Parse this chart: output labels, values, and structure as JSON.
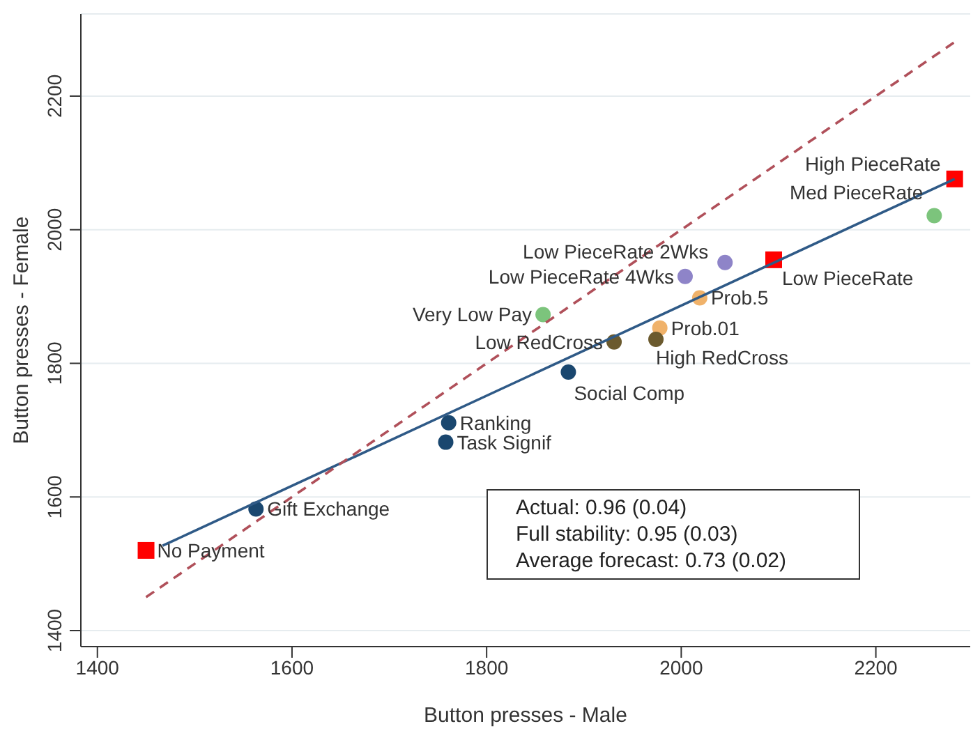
{
  "chart_data": {
    "type": "scatter",
    "xlabel": "Button presses - Male",
    "ylabel": "Button presses - Female",
    "xlim": [
      1383,
      2297
    ],
    "ylim": [
      1376,
      2323
    ],
    "xticks": [
      1400,
      1600,
      1800,
      2000,
      2200
    ],
    "yticks": [
      1400,
      1600,
      1800,
      2000,
      2200
    ],
    "grid": "y",
    "legend": false,
    "marker": "circle",
    "series": [
      {
        "color": "#1a476f",
        "x": [
          1563,
          1758,
          1761,
          1884
        ],
        "values": [
          1582,
          1682,
          1711,
          1787
        ]
      },
      {
        "color": "#ff0000",
        "marker": "square",
        "x": [
          1450,
          2095,
          2281
        ],
        "values": [
          1520,
          1955,
          2076
        ]
      },
      {
        "color": "#7cc47c",
        "x": [
          1858,
          2260
        ],
        "values": [
          1873,
          2021
        ]
      },
      {
        "color": "#8e84c8",
        "x": [
          2004,
          2045
        ],
        "values": [
          1930,
          1951
        ]
      },
      {
        "color": "#f0b26a",
        "x": [
          1978,
          2019
        ],
        "values": [
          1853,
          1898
        ]
      },
      {
        "color": "#6b5a2e",
        "x": [
          1931,
          1974
        ],
        "values": [
          1832,
          1836
        ]
      },
      {
        "type": "line",
        "color": "#2f5a87",
        "line_style": "solid",
        "marker": "none",
        "x": [
          1467,
          2281
        ],
        "values": [
          1527,
          2076
        ]
      },
      {
        "type": "line",
        "color": "#b0505a",
        "line_style": "dashed",
        "marker": "none",
        "x": [
          1450,
          2280
        ],
        "values": [
          1450,
          2280
        ]
      }
    ],
    "annotations": [
      {
        "text": "No Payment",
        "x": 1450,
        "y": 1520
      },
      {
        "text": "Gift Exchange",
        "x": 1563,
        "y": 1582
      },
      {
        "text": "Task Signif",
        "x": 1758,
        "y": 1682
      },
      {
        "text": "Ranking",
        "x": 1761,
        "y": 1711
      },
      {
        "text": "Social Comp",
        "x": 1884,
        "y": 1787
      },
      {
        "text": "Very Low Pay",
        "x": 1858,
        "y": 1873
      },
      {
        "text": "Low RedCross",
        "x": 1931,
        "y": 1832
      },
      {
        "text": "High RedCross",
        "x": 1974,
        "y": 1836
      },
      {
        "text": "Prob.01",
        "x": 1978,
        "y": 1853
      },
      {
        "text": "Prob.5",
        "x": 2019,
        "y": 1898
      },
      {
        "text": "Low PieceRate 4Wks",
        "x": 2004,
        "y": 1930
      },
      {
        "text": "Low PieceRate 2Wks",
        "x": 2045,
        "y": 1951
      },
      {
        "text": "Low PieceRate",
        "x": 2095,
        "y": 1955
      },
      {
        "text": "Med PieceRate",
        "x": 2260,
        "y": 2021
      },
      {
        "text": "High PieceRate",
        "x": 2281,
        "y": 2076
      },
      "Actual: 0.96 (0.04)",
      "Full stability: 0.95 (0.03)",
      "Average forecast: 0.73 (0.02)"
    ]
  }
}
